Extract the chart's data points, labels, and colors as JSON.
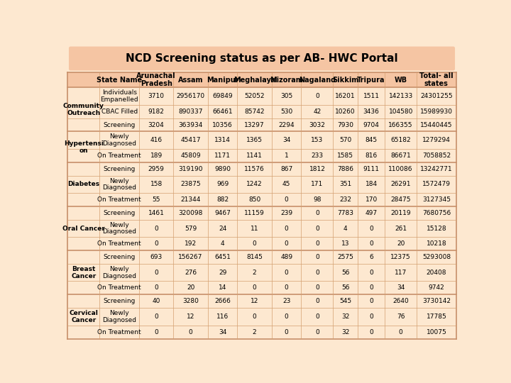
{
  "title": "NCD Screening status as per AB- HWC Portal",
  "title_bg": "#f5c5a3",
  "bg_color": "#fde8d0",
  "separator_color": "#c8906a",
  "thin_line": "#d4a070",
  "text_color": "#000000",
  "col_headers": [
    "",
    "State Name",
    "Arunachal\nPradesh",
    "Assam",
    "Manipur",
    "Meghalaya",
    "Mizoram",
    "Nagaland",
    "Sikkim",
    "Tripura",
    "WB",
    "Total- all\nstates"
  ],
  "row_groups": [
    {
      "group": "Community\nOutreach",
      "rows": [
        {
          "label": "Individuals\nEmpanelled",
          "values": [
            "3710",
            "2956170",
            "69849",
            "52052",
            "305",
            "0",
            "16201",
            "1511",
            "142133",
            "24301255"
          ]
        },
        {
          "label": "CBAC Filled",
          "values": [
            "9182",
            "890337",
            "66461",
            "85742",
            "530",
            "42",
            "10260",
            "3436",
            "104580",
            "15989930"
          ]
        },
        {
          "label": "Screening",
          "values": [
            "3204",
            "363934",
            "10356",
            "13297",
            "2294",
            "3032",
            "7930",
            "9704",
            "166355",
            "15440445"
          ]
        }
      ]
    },
    {
      "group": "Hypertensi\non",
      "rows": [
        {
          "label": "Newly\nDiagnosed",
          "values": [
            "416",
            "45417",
            "1314",
            "1365",
            "34",
            "153",
            "570",
            "845",
            "65182",
            "1279294"
          ]
        },
        {
          "label": "On Treatment",
          "values": [
            "189",
            "45809",
            "1171",
            "1141",
            "1",
            "233",
            "1585",
            "816",
            "86671",
            "7058852"
          ]
        }
      ]
    },
    {
      "group": "Diabetes",
      "rows": [
        {
          "label": "Screening",
          "values": [
            "2959",
            "319190",
            "9890",
            "11576",
            "867",
            "1812",
            "7886",
            "9111",
            "110086",
            "13242771"
          ]
        },
        {
          "label": "Newly\nDiagnosed",
          "values": [
            "158",
            "23875",
            "969",
            "1242",
            "45",
            "171",
            "351",
            "184",
            "26291",
            "1572479"
          ]
        },
        {
          "label": "On Treatment",
          "values": [
            "55",
            "21344",
            "882",
            "850",
            "0",
            "98",
            "232",
            "170",
            "28475",
            "3127345"
          ]
        }
      ]
    },
    {
      "group": "Oral Cancer",
      "rows": [
        {
          "label": "Screening",
          "values": [
            "1461",
            "320098",
            "9467",
            "11159",
            "239",
            "0",
            "7783",
            "497",
            "20119",
            "7680756"
          ]
        },
        {
          "label": "Newly\nDiagnosed",
          "values": [
            "0",
            "579",
            "24",
            "11",
            "0",
            "0",
            "4",
            "0",
            "261",
            "15128"
          ]
        },
        {
          "label": "On Treatment",
          "values": [
            "0",
            "192",
            "4",
            "0",
            "0",
            "0",
            "13",
            "0",
            "20",
            "10218"
          ]
        }
      ]
    },
    {
      "group": "Breast\nCancer",
      "rows": [
        {
          "label": "Screening",
          "values": [
            "693",
            "156267",
            "6451",
            "8145",
            "489",
            "0",
            "2575",
            "6",
            "12375",
            "5293008"
          ]
        },
        {
          "label": "Newly\nDiagnosed",
          "values": [
            "0",
            "276",
            "29",
            "2",
            "0",
            "0",
            "56",
            "0",
            "117",
            "20408"
          ]
        },
        {
          "label": "On Treatment",
          "values": [
            "0",
            "20",
            "14",
            "0",
            "0",
            "0",
            "56",
            "0",
            "34",
            "9742"
          ]
        }
      ]
    },
    {
      "group": "Cervical\nCancer",
      "rows": [
        {
          "label": "Screening",
          "values": [
            "40",
            "3280",
            "2666",
            "12",
            "23",
            "0",
            "545",
            "0",
            "2640",
            "3730142"
          ]
        },
        {
          "label": "Newly\nDiagnosed",
          "values": [
            "0",
            "12",
            "116",
            "0",
            "0",
            "0",
            "32",
            "0",
            "76",
            "17785"
          ]
        },
        {
          "label": "On Treatment",
          "values": [
            "0",
            "0",
            "34",
            "2",
            "0",
            "0",
            "32",
            "0",
            "0",
            "10075"
          ]
        }
      ]
    }
  ],
  "col_widths_ratio": [
    6.5,
    8,
    7,
    7,
    6,
    7,
    6,
    6.5,
    5,
    5.5,
    6.5,
    8
  ],
  "font_size": 6.5,
  "header_font_size": 7,
  "title_font_size": 11
}
